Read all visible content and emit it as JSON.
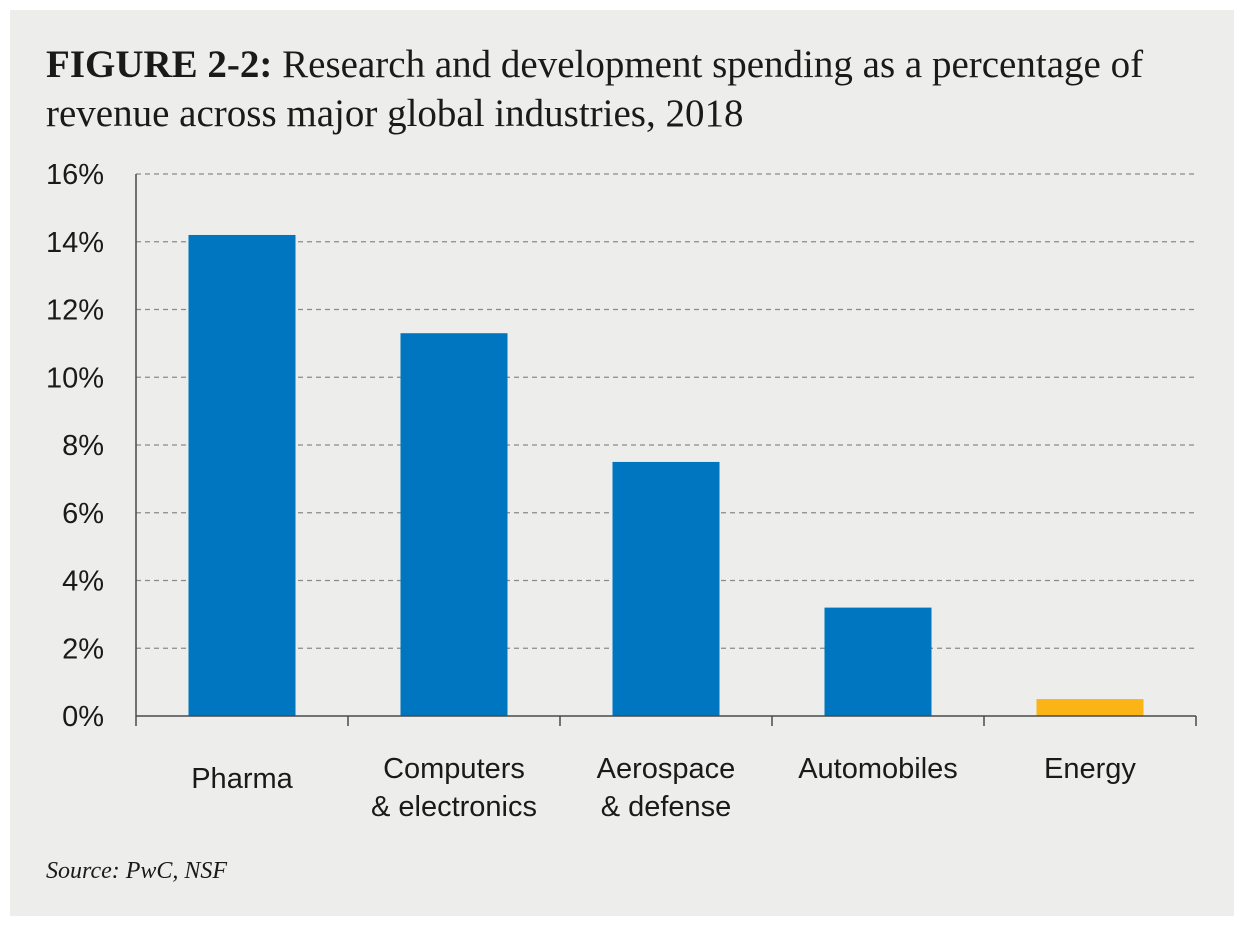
{
  "figure": {
    "label": "FIGURE 2-2:",
    "title": "Research and development spending as a percentage of revenue across major global industries, 2018",
    "source": "Source: PwC, NSF"
  },
  "chart_data": {
    "type": "bar",
    "categories": [
      [
        "Pharma"
      ],
      [
        "Computers",
        "& electronics"
      ],
      [
        "Aerospace",
        "& defense"
      ],
      [
        "Automobiles"
      ],
      [
        "Energy"
      ]
    ],
    "values": [
      14.2,
      11.3,
      7.5,
      3.2,
      0.5
    ],
    "bar_colors": [
      "#0076c0",
      "#0076c0",
      "#0076c0",
      "#0076c0",
      "#fbb416"
    ],
    "ylim": [
      0,
      16
    ],
    "yticks": [
      0,
      2,
      4,
      6,
      8,
      10,
      12,
      14,
      16
    ],
    "ytick_labels": [
      "0%",
      "2%",
      "4%",
      "6%",
      "8%",
      "10%",
      "12%",
      "14%",
      "16%"
    ],
    "grid": true,
    "legend": "none",
    "xlabel": "",
    "ylabel": ""
  }
}
